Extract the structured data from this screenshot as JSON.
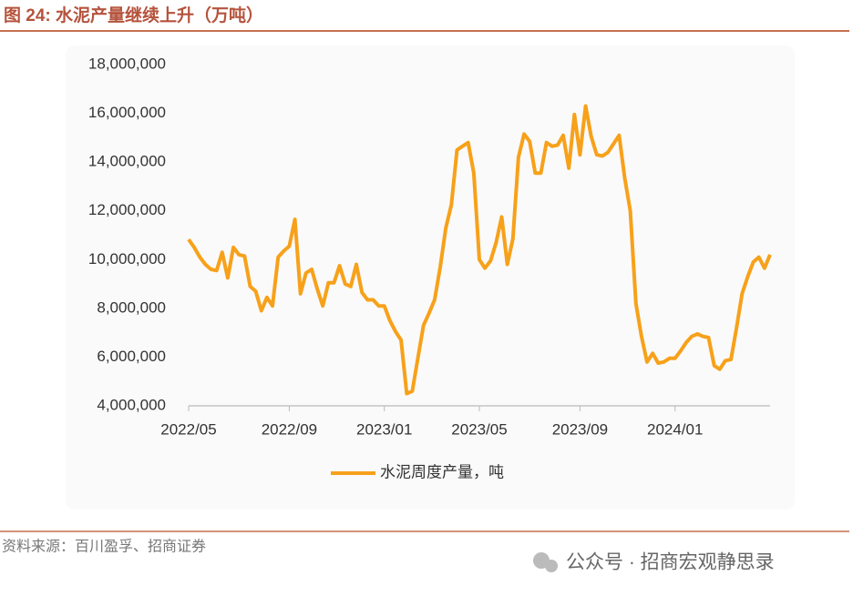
{
  "chart_data": {
    "type": "line",
    "title": "图 24:  水泥产量继续上升（万吨）",
    "categories": [
      "2022/05",
      null,
      null,
      null,
      null,
      null,
      null,
      null,
      null,
      null,
      null,
      null,
      null,
      null,
      null,
      null,
      null,
      null,
      "2022/09",
      null,
      null,
      null,
      null,
      null,
      null,
      null,
      null,
      null,
      null,
      null,
      null,
      null,
      null,
      null,
      null,
      "2023/01",
      null,
      null,
      null,
      null,
      null,
      null,
      null,
      null,
      null,
      null,
      null,
      null,
      null,
      null,
      null,
      null,
      "2023/05",
      null,
      null,
      null,
      null,
      null,
      null,
      null,
      null,
      null,
      null,
      null,
      null,
      null,
      null,
      null,
      null,
      null,
      "2023/09",
      null,
      null,
      null,
      null,
      null,
      null,
      null,
      null,
      null,
      null,
      null,
      null,
      null,
      null,
      null,
      null,
      "2024/01",
      null,
      null,
      null,
      null,
      null,
      null,
      null,
      null,
      null,
      null,
      null,
      null,
      null,
      null,
      null,
      null,
      null
    ],
    "series": [
      {
        "name": "水泥周度产量，吨",
        "color": "#f7a11a",
        "values": [
          10830000,
          10500000,
          10100000,
          9800000,
          9600000,
          9550000,
          10300000,
          9250000,
          10500000,
          10200000,
          10150000,
          8900000,
          8700000,
          7900000,
          8450000,
          8100000,
          10100000,
          10350000,
          10550000,
          11650000,
          8600000,
          9450000,
          9600000,
          8800000,
          8100000,
          9050000,
          9050000,
          9750000,
          9000000,
          8900000,
          9800000,
          8650000,
          8350000,
          8350000,
          8100000,
          8100000,
          7500000,
          7050000,
          6700000,
          4500000,
          4600000,
          5950000,
          7300000,
          7800000,
          8350000,
          9700000,
          11300000,
          12250000,
          14500000,
          14650000,
          14800000,
          13550000,
          10000000,
          9650000,
          9950000,
          10700000,
          11750000,
          9800000,
          10850000,
          14200000,
          15150000,
          14850000,
          13550000,
          13550000,
          14800000,
          14650000,
          14700000,
          15100000,
          13750000,
          15950000,
          14300000,
          16300000,
          15050000,
          14300000,
          14250000,
          14400000,
          14750000,
          15100000,
          13350000,
          12000000,
          8200000,
          6850000,
          5800000,
          6150000,
          5750000,
          5800000,
          5950000,
          5950000,
          6250000,
          6600000,
          6850000,
          6950000,
          6850000,
          6800000,
          5650000,
          5500000,
          5850000,
          5900000,
          7200000,
          8600000,
          9300000,
          9900000,
          10100000,
          9650000,
          10200000
        ]
      }
    ],
    "ylim": [
      4000000,
      18000000
    ],
    "yticks": [
      {
        "value": 4000000,
        "label": "4,000,000"
      },
      {
        "value": 6000000,
        "label": "6,000,000"
      },
      {
        "value": 8000000,
        "label": "8,000,000"
      },
      {
        "value": 10000000,
        "label": "10,000,000"
      },
      {
        "value": 12000000,
        "label": "12,000,000"
      },
      {
        "value": 14000000,
        "label": "14,000,000"
      },
      {
        "value": 16000000,
        "label": "16,000,000"
      },
      {
        "value": 18000000,
        "label": "18,000,000"
      }
    ],
    "grid": false
  },
  "source": "资料来源：百川盈孚、招商证券",
  "watermark": "公众号 · 招商宏观静思录"
}
